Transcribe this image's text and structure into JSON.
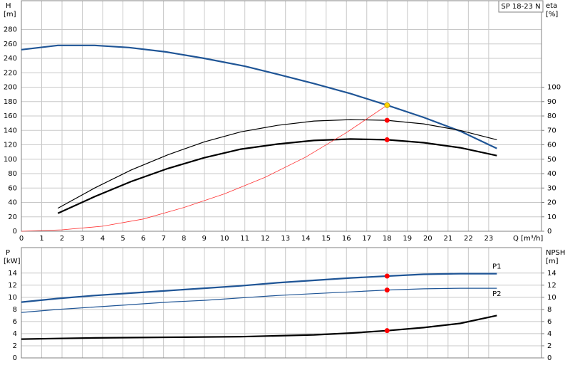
{
  "chart_data": [
    {
      "type": "line",
      "title": "SP 18-23 N",
      "ylabel": "H",
      "yunit": "[m]",
      "y2label": "eta",
      "y2unit": "[%]",
      "xlabel": "Q [m³/h]",
      "xlim": [
        0,
        25.6
      ],
      "xticks": [
        0,
        1,
        2,
        3,
        4,
        5,
        6,
        7,
        8,
        9,
        10,
        11,
        12,
        13,
        14,
        15,
        16,
        17,
        18,
        19,
        20,
        21,
        22,
        23
      ],
      "ylim": [
        0,
        320
      ],
      "yticks": [
        0,
        20,
        40,
        60,
        80,
        100,
        120,
        140,
        160,
        180,
        200,
        220,
        240,
        260,
        280
      ],
      "y2lim": [
        0,
        160
      ],
      "y2ticks": [
        0,
        10,
        20,
        30,
        40,
        50,
        60,
        70,
        80,
        90,
        100
      ],
      "grid": true,
      "series": [
        {
          "color": "#1f5596",
          "axis": "y",
          "x": [
            0,
            1.8,
            3.6,
            5.3,
            7.1,
            9,
            11,
            12.6,
            14.4,
            16.2,
            18,
            19.8,
            21.6,
            23.4
          ],
          "values": [
            252,
            258,
            258,
            255,
            249,
            240,
            229,
            218,
            205,
            191,
            175,
            158,
            139,
            115
          ]
        },
        {
          "color": "#000000",
          "axis": "y2",
          "x": [
            1.8,
            3.6,
            5.4,
            7.2,
            9,
            10.8,
            12.6,
            14.4,
            16.2,
            18,
            19.8,
            21.6,
            23.4
          ],
          "values": [
            16,
            30,
            42.5,
            53,
            62,
            69,
            73.5,
            76.5,
            77.5,
            77,
            74.5,
            70,
            63.5
          ]
        },
        {
          "color": "#000000",
          "axis": "y2",
          "x": [
            1.8,
            3.6,
            5.4,
            7.2,
            9,
            10.8,
            12.6,
            14.4,
            16.2,
            18,
            19.8,
            21.6,
            23.4
          ],
          "values": [
            12.5,
            24,
            34.5,
            43.5,
            51,
            57,
            60.5,
            63,
            64,
            63.5,
            61.5,
            58,
            52.5
          ]
        },
        {
          "color": "#ff3030",
          "axis": "y",
          "x": [
            0,
            2,
            4,
            6,
            8,
            10,
            12,
            14,
            16,
            18
          ],
          "values": [
            0,
            2,
            7,
            17,
            33,
            52,
            75,
            103,
            137,
            175
          ]
        }
      ],
      "markers": [
        {
          "x": 18,
          "y": 175,
          "axis": "y",
          "color": "#ffd700"
        },
        {
          "x": 18,
          "y": 77,
          "axis": "y2",
          "color": "#ff0000"
        },
        {
          "x": 18,
          "y": 63.5,
          "axis": "y2",
          "color": "#ff0000"
        }
      ]
    },
    {
      "type": "line",
      "ylabel": "P",
      "yunit": "[kW]",
      "y2label": "NPSH",
      "y2unit": "[m]",
      "xlim": [
        0,
        25.6
      ],
      "ylim": [
        0,
        18.2
      ],
      "yticks": [
        0,
        2,
        4,
        6,
        8,
        10,
        12,
        14
      ],
      "y2lim": [
        0,
        18.2
      ],
      "y2ticks": [
        0,
        2,
        4,
        6,
        8,
        10,
        12,
        14
      ],
      "grid": true,
      "series": [
        {
          "name": "P1",
          "color": "#1f5596",
          "axis": "y",
          "x": [
            0,
            1.8,
            3.6,
            5.4,
            7.2,
            9,
            10.8,
            12.6,
            14.4,
            16.2,
            18,
            19.8,
            21.6,
            23.4
          ],
          "values": [
            9.2,
            9.8,
            10.3,
            10.7,
            11.1,
            11.5,
            11.9,
            12.4,
            12.8,
            13.2,
            13.5,
            13.8,
            13.9,
            13.9
          ]
        },
        {
          "name": "P2",
          "color": "#1f5596",
          "axis": "y",
          "x": [
            0,
            1.8,
            3.6,
            5.4,
            7.2,
            9,
            10.8,
            12.6,
            14.4,
            16.2,
            18,
            19.8,
            21.6,
            23.4
          ],
          "values": [
            7.5,
            8.0,
            8.4,
            8.8,
            9.2,
            9.5,
            9.9,
            10.3,
            10.6,
            10.9,
            11.2,
            11.4,
            11.5,
            11.5
          ]
        },
        {
          "color": "#000000",
          "axis": "y2",
          "x": [
            0,
            1.8,
            3.6,
            7.2,
            10.8,
            14.4,
            16.2,
            18,
            19.8,
            21.6,
            23.4
          ],
          "values": [
            3.1,
            3.2,
            3.3,
            3.4,
            3.5,
            3.8,
            4.1,
            4.5,
            5.0,
            5.7,
            7.0
          ]
        }
      ],
      "markers": [
        {
          "x": 18,
          "y": 13.5,
          "axis": "y",
          "color": "#ff0000"
        },
        {
          "x": 18,
          "y": 11.2,
          "axis": "y",
          "color": "#ff0000"
        },
        {
          "x": 18,
          "y": 4.5,
          "axis": "y2",
          "color": "#ff0000"
        }
      ]
    }
  ]
}
